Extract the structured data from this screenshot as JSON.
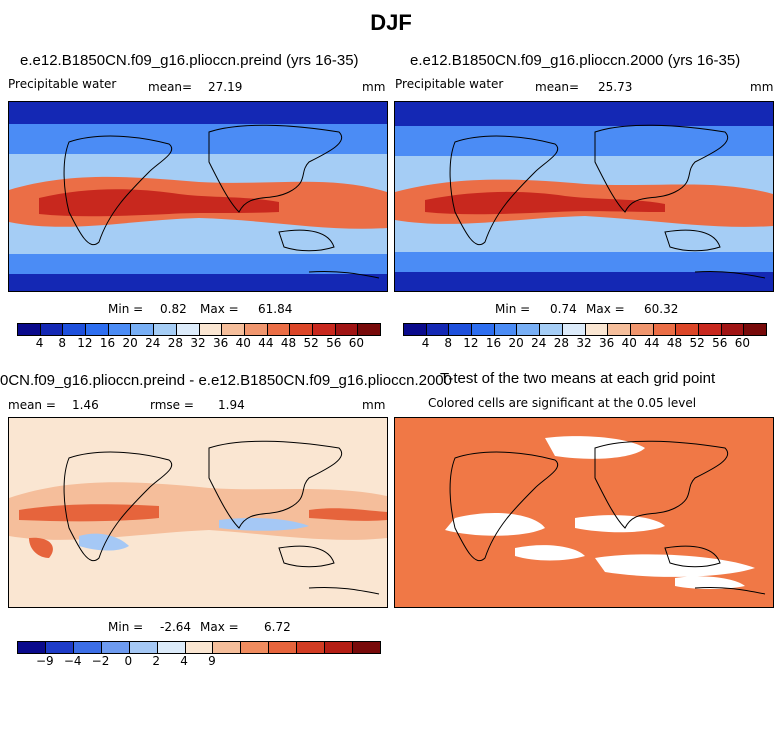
{
  "title": "DJF",
  "panels": {
    "preind": {
      "title": "e.e12.B1850CN.f09_g16.plioccn.preind (yrs 16-35)",
      "variable": "Precipitable water",
      "mean_label": "mean=",
      "mean_value": "27.19",
      "units": "mm",
      "min_label": "Min =",
      "min_value": "0.82",
      "max_label": "Max =",
      "max_value": "61.84"
    },
    "y2000": {
      "title": "e.e12.B1850CN.f09_g16.plioccn.2000 (yrs 16-35)",
      "variable": "Precipitable water",
      "mean_label": "mean=",
      "mean_value": "25.73",
      "units": "mm",
      "min_label": "Min =",
      "min_value": "0.74",
      "max_label": "Max =",
      "max_value": "60.32"
    },
    "diff": {
      "title": "0CN.f09_g16.plioccn.preind - e.e12.B1850CN.f09_g16.plioccn.2000",
      "mean_label": "mean =",
      "mean_value": "1.46",
      "rmse_label": "rmse =",
      "rmse_value": "1.94",
      "units": "mm",
      "min_label": "Min =",
      "min_value": "-2.64",
      "max_label": "Max =",
      "max_value": "6.72"
    },
    "ttest": {
      "title": "T-test of the two means at each grid point",
      "subtitle": "Colored cells are significant at the 0.05 level"
    }
  },
  "colorbars": {
    "abs_ticks": [
      "4",
      "8",
      "12",
      "16",
      "20",
      "24",
      "28",
      "32",
      "36",
      "40",
      "44",
      "48",
      "52",
      "56",
      "60"
    ],
    "diff_ticks": [
      "−9",
      "−4",
      "−2",
      "0",
      "2",
      "4",
      "9"
    ],
    "abs_colors": [
      "#0a0a8c",
      "#1428b4",
      "#1e50dc",
      "#2d6ef0",
      "#4b8cf5",
      "#78aff5",
      "#a5cdf5",
      "#dcebfa",
      "#fae6d2",
      "#f5be9b",
      "#f0966e",
      "#eb6e46",
      "#dc4628",
      "#c8281e",
      "#a01414",
      "#780a0a"
    ],
    "diff_colors": [
      "#0a0a8c",
      "#1e3cc8",
      "#3c6ee6",
      "#6e9bf0",
      "#a5c8f5",
      "#dcebfa",
      "#fae6d2",
      "#f5be9b",
      "#f08c5f",
      "#e6643c",
      "#d23c23",
      "#b41e14",
      "#780a0a"
    ]
  },
  "map_colors": {
    "polar": "#1428b4",
    "midlat": "#4b8cf5",
    "subtrop": "#a5cdf5",
    "tropics": "#eb6e46",
    "core": "#c8281e",
    "diff_bg": "#fae6d2",
    "diff_pos": "#f5be9b",
    "diff_strong": "#e6643c",
    "diff_neg": "#a5c8f5",
    "sig": "#f07846",
    "nonsig": "#ffffff"
  }
}
